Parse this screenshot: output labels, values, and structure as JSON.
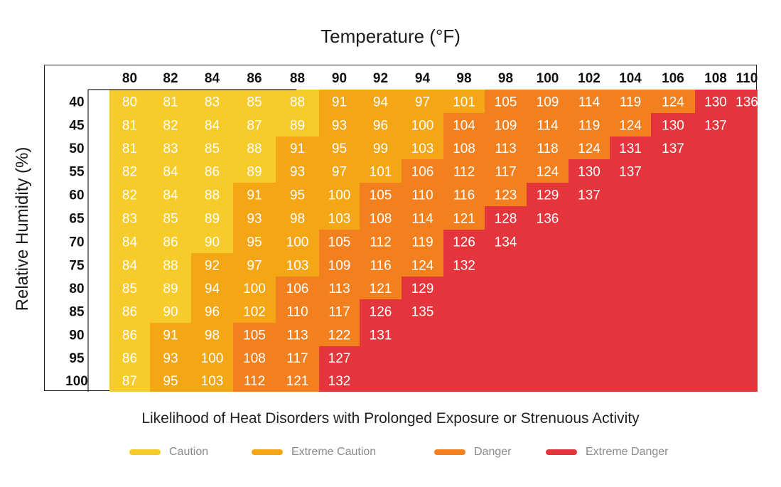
{
  "chart_data": {
    "type": "heatmap",
    "title": "Temperature (°F)",
    "xlabel": "Temperature (°F)",
    "ylabel": "Relative Humidity (%)",
    "subtitle": "Likelihood of Heat Disorders with Prolonged Exposure or Strenuous Activity",
    "x_categories": [
      "80",
      "82",
      "84",
      "86",
      "88",
      "90",
      "92",
      "94",
      "98",
      "98",
      "100",
      "102",
      "104",
      "106",
      "108",
      "110"
    ],
    "y_categories": [
      "40",
      "45",
      "50",
      "55",
      "60",
      "65",
      "70",
      "75",
      "80",
      "85",
      "90",
      "95",
      "100"
    ],
    "values": [
      [
        80,
        81,
        83,
        85,
        88,
        91,
        94,
        97,
        101,
        105,
        109,
        114,
        119,
        124,
        130,
        136
      ],
      [
        81,
        82,
        84,
        87,
        89,
        93,
        96,
        100,
        104,
        109,
        114,
        119,
        124,
        130,
        137,
        null
      ],
      [
        81,
        83,
        85,
        88,
        91,
        95,
        99,
        103,
        108,
        113,
        118,
        124,
        131,
        137,
        null,
        null
      ],
      [
        82,
        84,
        86,
        89,
        93,
        97,
        101,
        106,
        112,
        117,
        124,
        130,
        137,
        null,
        null,
        null
      ],
      [
        82,
        84,
        88,
        91,
        95,
        100,
        105,
        110,
        116,
        123,
        129,
        137,
        null,
        null,
        null,
        null
      ],
      [
        83,
        85,
        89,
        93,
        98,
        103,
        108,
        114,
        121,
        128,
        136,
        null,
        null,
        null,
        null,
        null
      ],
      [
        84,
        86,
        90,
        95,
        100,
        105,
        112,
        119,
        126,
        134,
        null,
        null,
        null,
        null,
        null,
        null
      ],
      [
        84,
        88,
        92,
        97,
        103,
        109,
        116,
        124,
        132,
        null,
        null,
        null,
        null,
        null,
        null,
        null
      ],
      [
        85,
        89,
        94,
        100,
        106,
        113,
        121,
        129,
        null,
        null,
        null,
        null,
        null,
        null,
        null,
        null
      ],
      [
        86,
        90,
        96,
        102,
        110,
        117,
        126,
        135,
        null,
        null,
        null,
        null,
        null,
        null,
        null,
        null
      ],
      [
        86,
        91,
        98,
        105,
        113,
        122,
        131,
        null,
        null,
        null,
        null,
        null,
        null,
        null,
        null,
        null
      ],
      [
        86,
        93,
        100,
        108,
        117,
        127,
        null,
        null,
        null,
        null,
        null,
        null,
        null,
        null,
        null,
        null
      ],
      [
        87,
        95,
        103,
        112,
        121,
        132,
        null,
        null,
        null,
        null,
        null,
        null,
        null,
        null,
        null,
        null
      ]
    ],
    "categories_legend": [
      {
        "name": "Caution",
        "color": "#F7CB2A"
      },
      {
        "name": "Extreme Caution",
        "color": "#F5A615"
      },
      {
        "name": "Danger",
        "color": "#F2801F"
      },
      {
        "name": "Extreme Danger",
        "color": "#E4343C"
      }
    ],
    "thresholds": {
      "caution_max": 90,
      "extreme_caution_max": 103,
      "danger_max": 124
    },
    "empty_cell_level": "Extreme Danger"
  }
}
